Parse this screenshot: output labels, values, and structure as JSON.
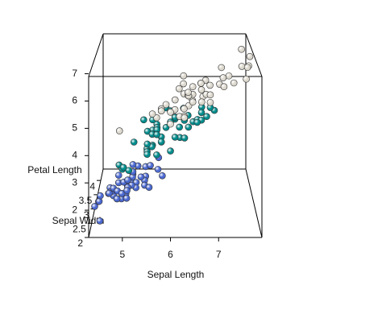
{
  "chart_data": {
    "type": "scatter3d",
    "x_label": "Sepal Length",
    "y_label": "Sepal Width",
    "z_label": "Petal Length",
    "xlim": [
      4.3,
      7.9
    ],
    "ylim": [
      2,
      4.4
    ],
    "zlim": [
      1,
      6.9
    ],
    "xticks": [
      5,
      6,
      7
    ],
    "yticks": [
      2,
      2.5,
      3,
      3.5,
      4
    ],
    "zticks": [
      2,
      3,
      4,
      5,
      6,
      7
    ],
    "series": [
      {
        "color": "#4a68d0",
        "x": [
          5.1,
          4.9,
          4.7,
          4.6,
          5.0,
          5.4,
          4.6,
          5.0,
          4.4,
          4.9,
          5.4,
          4.8,
          4.8,
          4.3,
          5.8,
          5.7,
          5.4,
          5.1,
          5.7,
          5.1,
          5.4,
          5.1,
          4.6,
          5.1,
          4.8,
          5.0,
          5.0,
          5.2,
          5.2,
          4.7,
          4.8,
          5.4,
          5.2,
          5.5,
          4.9,
          5.0,
          5.5,
          4.9,
          4.4,
          5.1,
          5.0,
          4.5,
          4.4,
          5.0,
          5.1,
          4.8,
          5.1,
          4.6,
          5.3,
          5.0
        ],
        "y": [
          3.5,
          3.0,
          3.2,
          3.1,
          3.6,
          3.9,
          3.4,
          3.4,
          2.9,
          3.1,
          3.7,
          3.4,
          3.0,
          3.0,
          4.0,
          4.4,
          3.9,
          3.5,
          3.8,
          3.8,
          3.4,
          3.7,
          3.6,
          3.3,
          3.4,
          3.0,
          3.4,
          3.5,
          3.4,
          3.2,
          3.1,
          3.4,
          4.1,
          4.2,
          3.1,
          3.2,
          3.5,
          3.6,
          3.0,
          3.4,
          3.5,
          2.3,
          3.2,
          3.5,
          3.8,
          3.0,
          3.8,
          3.2,
          3.7,
          3.3
        ],
        "z": [
          1.4,
          1.4,
          1.3,
          1.5,
          1.4,
          1.7,
          1.4,
          1.5,
          1.4,
          1.5,
          1.5,
          1.6,
          1.4,
          1.1,
          1.2,
          1.5,
          1.3,
          1.4,
          1.7,
          1.5,
          1.7,
          1.5,
          1.0,
          1.7,
          1.9,
          1.6,
          1.6,
          1.5,
          1.4,
          1.6,
          1.6,
          1.5,
          1.5,
          1.4,
          1.5,
          1.2,
          1.3,
          1.4,
          1.3,
          1.5,
          1.3,
          1.3,
          1.3,
          1.6,
          1.9,
          1.4,
          1.6,
          1.4,
          1.5,
          1.4
        ]
      },
      {
        "color": "#008b8b",
        "x": [
          7.0,
          6.4,
          6.9,
          5.5,
          6.5,
          5.7,
          6.3,
          4.9,
          6.6,
          5.2,
          5.0,
          5.9,
          6.0,
          6.1,
          5.6,
          6.7,
          5.6,
          5.8,
          6.2,
          5.6,
          5.9,
          6.1,
          6.3,
          6.1,
          6.4,
          6.6,
          6.8,
          6.7,
          6.0,
          5.7,
          5.5,
          5.5,
          5.8,
          6.0,
          5.4,
          6.0,
          6.7,
          6.3,
          5.6,
          5.5,
          5.5,
          6.1,
          5.8,
          5.0,
          5.6,
          5.7,
          5.7,
          6.2,
          5.1,
          5.7
        ],
        "y": [
          3.2,
          3.2,
          3.1,
          2.3,
          2.8,
          2.8,
          3.3,
          2.4,
          2.9,
          2.7,
          2.0,
          3.0,
          2.2,
          2.9,
          2.9,
          3.1,
          3.0,
          2.7,
          2.2,
          2.5,
          3.2,
          2.8,
          2.5,
          2.8,
          2.9,
          3.0,
          2.8,
          3.0,
          2.9,
          2.6,
          2.4,
          2.4,
          2.7,
          2.7,
          3.0,
          3.4,
          3.1,
          2.3,
          3.0,
          2.5,
          2.6,
          3.0,
          2.6,
          2.3,
          2.7,
          3.0,
          2.9,
          2.9,
          2.5,
          2.8
        ],
        "z": [
          4.7,
          4.5,
          4.9,
          4.0,
          4.6,
          4.5,
          4.7,
          3.3,
          4.6,
          3.9,
          3.5,
          4.2,
          4.0,
          4.7,
          3.6,
          4.4,
          4.5,
          4.1,
          4.5,
          3.9,
          4.8,
          4.0,
          4.9,
          4.7,
          4.3,
          4.4,
          4.8,
          5.0,
          4.5,
          3.5,
          3.8,
          3.7,
          3.9,
          5.1,
          4.5,
          4.5,
          4.7,
          4.4,
          4.1,
          4.0,
          4.4,
          4.6,
          4.0,
          3.3,
          4.2,
          4.2,
          4.2,
          4.3,
          3.0,
          4.1
        ]
      },
      {
        "color": "#dcd8ce",
        "x": [
          6.3,
          5.8,
          7.1,
          6.3,
          6.5,
          7.6,
          4.9,
          7.3,
          6.7,
          7.2,
          6.5,
          6.4,
          6.8,
          5.7,
          5.8,
          6.4,
          6.5,
          7.7,
          7.7,
          6.0,
          6.9,
          5.6,
          7.7,
          6.3,
          6.7,
          7.2,
          6.2,
          6.1,
          6.4,
          7.2,
          7.4,
          7.9,
          6.4,
          6.3,
          6.1,
          7.7,
          6.3,
          6.4,
          6.0,
          6.9,
          6.7,
          6.9,
          5.8,
          6.8,
          6.7,
          6.7,
          6.3,
          6.5,
          6.2,
          5.9
        ],
        "y": [
          3.3,
          2.7,
          3.0,
          2.9,
          3.0,
          3.0,
          2.5,
          2.9,
          2.5,
          3.6,
          3.2,
          2.7,
          3.0,
          2.5,
          2.8,
          3.2,
          3.0,
          3.8,
          2.6,
          2.2,
          3.2,
          2.8,
          2.8,
          2.7,
          3.3,
          3.2,
          2.8,
          3.0,
          2.8,
          3.0,
          2.8,
          3.8,
          2.8,
          2.8,
          2.6,
          3.0,
          3.4,
          3.1,
          3.0,
          3.1,
          3.1,
          3.1,
          2.7,
          3.2,
          3.3,
          3.0,
          2.5,
          3.0,
          3.4,
          3.0
        ],
        "z": [
          6.0,
          5.1,
          5.9,
          5.6,
          5.8,
          6.6,
          4.5,
          6.3,
          5.8,
          6.1,
          5.1,
          5.3,
          5.5,
          5.0,
          5.1,
          5.3,
          5.5,
          6.7,
          6.9,
          5.0,
          5.7,
          4.9,
          6.7,
          4.9,
          5.7,
          6.0,
          4.8,
          4.9,
          5.6,
          5.8,
          6.1,
          6.4,
          5.6,
          5.1,
          5.6,
          6.1,
          5.6,
          5.5,
          4.8,
          5.4,
          5.6,
          5.1,
          5.1,
          5.9,
          5.7,
          5.2,
          5.0,
          5.2,
          5.4,
          5.1
        ]
      }
    ]
  }
}
